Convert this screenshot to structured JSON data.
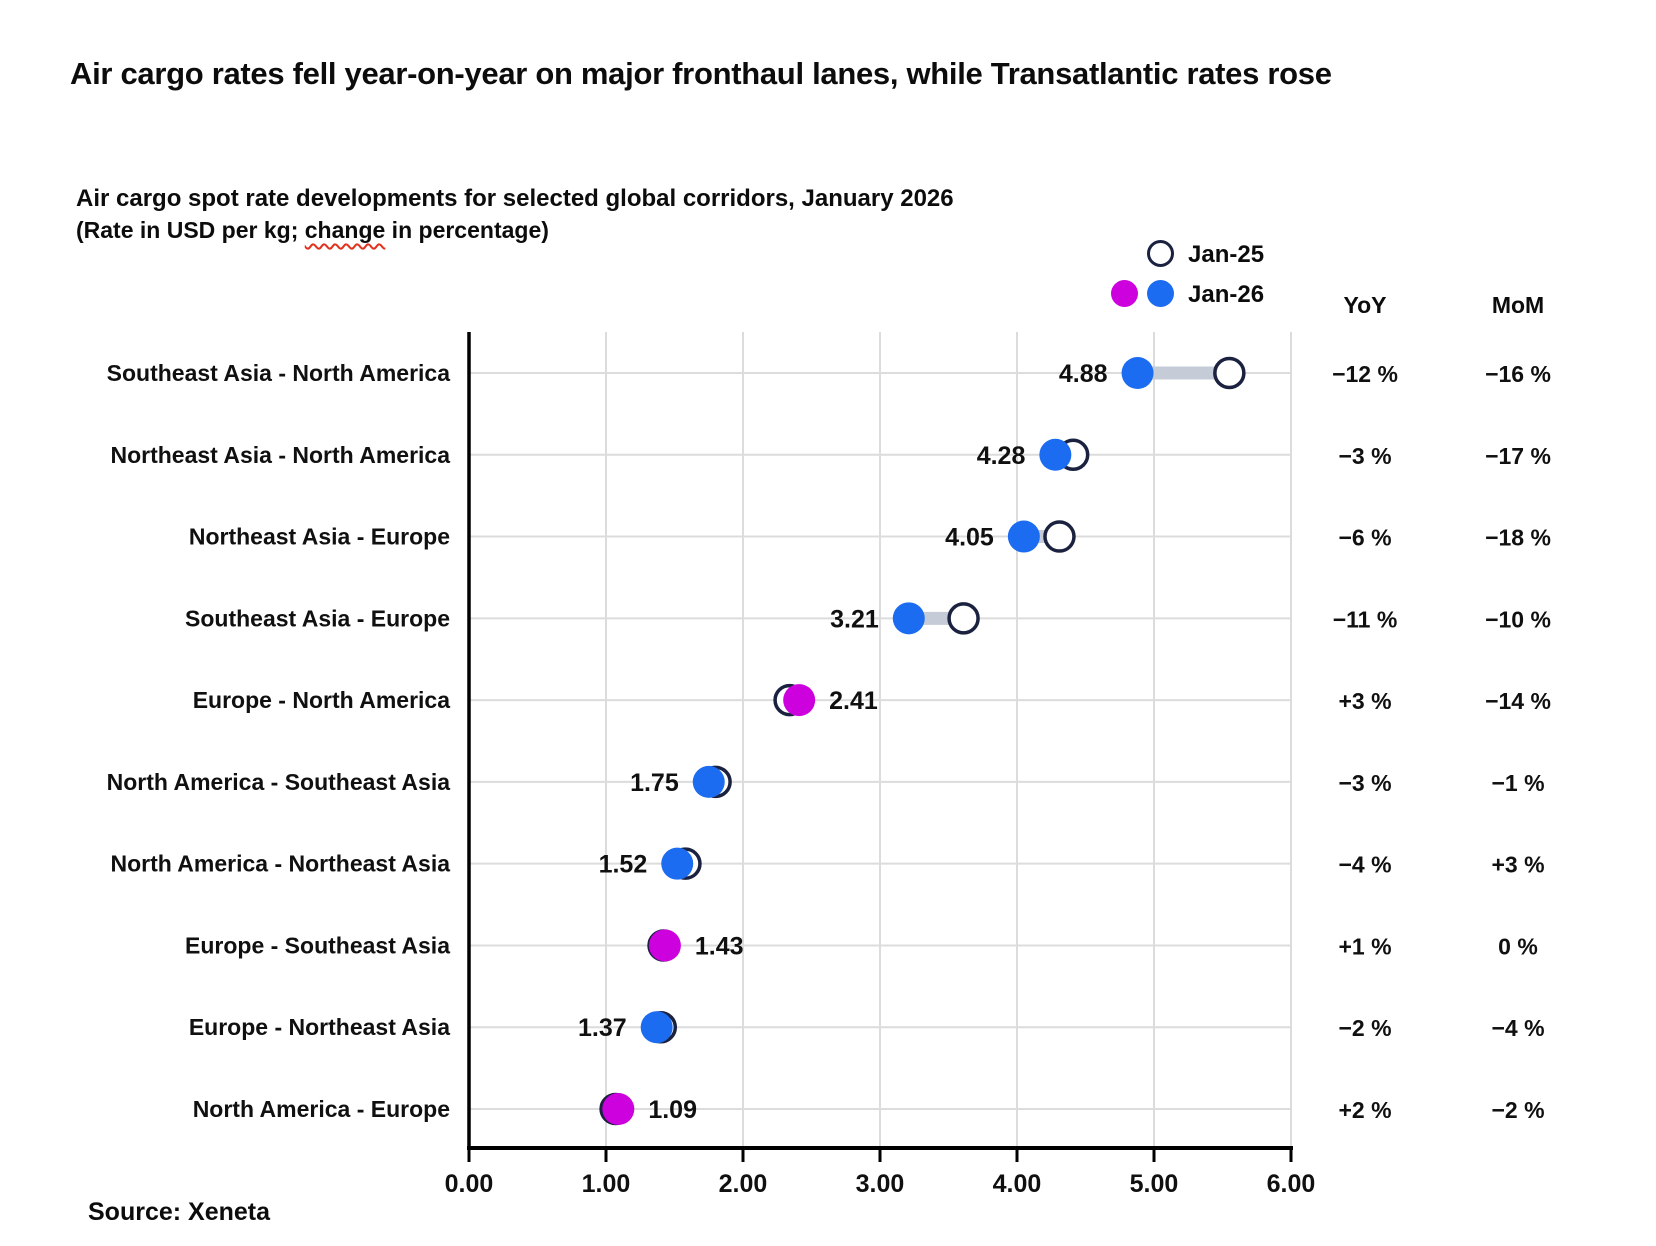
{
  "title": "Air cargo rates fell year-on-year on major fronthaul lanes, while Transatlantic rates rose",
  "subtitle": {
    "line1": "Air cargo spot rate developments for selected global corridors, January 2026",
    "line2_prefix": "(Rate in USD per kg; ",
    "line2_marked": "change",
    "line2_suffix": " in percentage)"
  },
  "legend": {
    "jan25_label": "Jan-25",
    "jan26_label": "Jan-26"
  },
  "columns": {
    "yoy": "YoY",
    "mom": "MoM"
  },
  "source": "Source: Xeneta",
  "colors": {
    "blue": "#1b6cf0",
    "magenta": "#cd00de",
    "open_circle_stroke": "#1b2240",
    "connector": "#c5cbd7",
    "gridline": "#dcdcdc",
    "axis": "#000000",
    "text": "#101010"
  },
  "chart_data": {
    "type": "scatter",
    "variant": "dumbbell",
    "title": "Air cargo spot rate developments for selected global corridors, January 2026",
    "subtitle": "(Rate in USD per kg; change in percentage)",
    "xlabel": "Rate in USD per kg",
    "xlim": [
      0,
      6
    ],
    "x_ticks": [
      "0.00",
      "1.00",
      "2.00",
      "3.00",
      "4.00",
      "5.00",
      "6.00"
    ],
    "grid": true,
    "legend_position": "top-right",
    "series_names": [
      "Jan-25",
      "Jan-26"
    ],
    "rows": [
      {
        "corridor": "Southeast Asia - North America",
        "jan26": 4.88,
        "jan25_est": 5.55,
        "yoy_pct": -12,
        "mom_pct": -16,
        "yoy": "−12 %",
        "mom": "−16 %",
        "color": "blue",
        "label_side": "left"
      },
      {
        "corridor": "Northeast Asia - North America",
        "jan26": 4.28,
        "jan25_est": 4.41,
        "yoy_pct": -3,
        "mom_pct": -17,
        "yoy": "−3 %",
        "mom": "−17 %",
        "color": "blue",
        "label_side": "left"
      },
      {
        "corridor": "Northeast Asia - Europe",
        "jan26": 4.05,
        "jan25_est": 4.31,
        "yoy_pct": -6,
        "mom_pct": -18,
        "yoy": "−6 %",
        "mom": "−18 %",
        "color": "blue",
        "label_side": "left"
      },
      {
        "corridor": "Southeast Asia - Europe",
        "jan26": 3.21,
        "jan25_est": 3.61,
        "yoy_pct": -11,
        "mom_pct": -10,
        "yoy": "−11 %",
        "mom": "−10 %",
        "color": "blue",
        "label_side": "left"
      },
      {
        "corridor": "Europe - North America",
        "jan26": 2.41,
        "jan25_est": 2.34,
        "yoy_pct": 3,
        "mom_pct": -14,
        "yoy": "+3 %",
        "mom": "−14 %",
        "color": "magenta",
        "label_side": "right"
      },
      {
        "corridor": "North America - Southeast Asia",
        "jan26": 1.75,
        "jan25_est": 1.8,
        "yoy_pct": -3,
        "mom_pct": -1,
        "yoy": "−3 %",
        "mom": "−1 %",
        "color": "blue",
        "label_side": "left"
      },
      {
        "corridor": "North America - Northeast Asia",
        "jan26": 1.52,
        "jan25_est": 1.58,
        "yoy_pct": -4,
        "mom_pct": 3,
        "yoy": "−4 %",
        "mom": "+3 %",
        "color": "blue",
        "label_side": "left"
      },
      {
        "corridor": "Europe - Southeast Asia",
        "jan26": 1.43,
        "jan25_est": 1.42,
        "yoy_pct": 1,
        "mom_pct": 0,
        "yoy": "+1 %",
        "mom": "0 %",
        "color": "magenta",
        "label_side": "right"
      },
      {
        "corridor": "Europe - Northeast Asia",
        "jan26": 1.37,
        "jan25_est": 1.4,
        "yoy_pct": -2,
        "mom_pct": -4,
        "yoy": "−2 %",
        "mom": "−4 %",
        "color": "blue",
        "label_side": "left"
      },
      {
        "corridor": "North America - Europe",
        "jan26": 1.09,
        "jan25_est": 1.07,
        "yoy_pct": 2,
        "mom_pct": -2,
        "yoy": "+2 %",
        "mom": "−2 %",
        "color": "magenta",
        "label_side": "right"
      }
    ]
  }
}
